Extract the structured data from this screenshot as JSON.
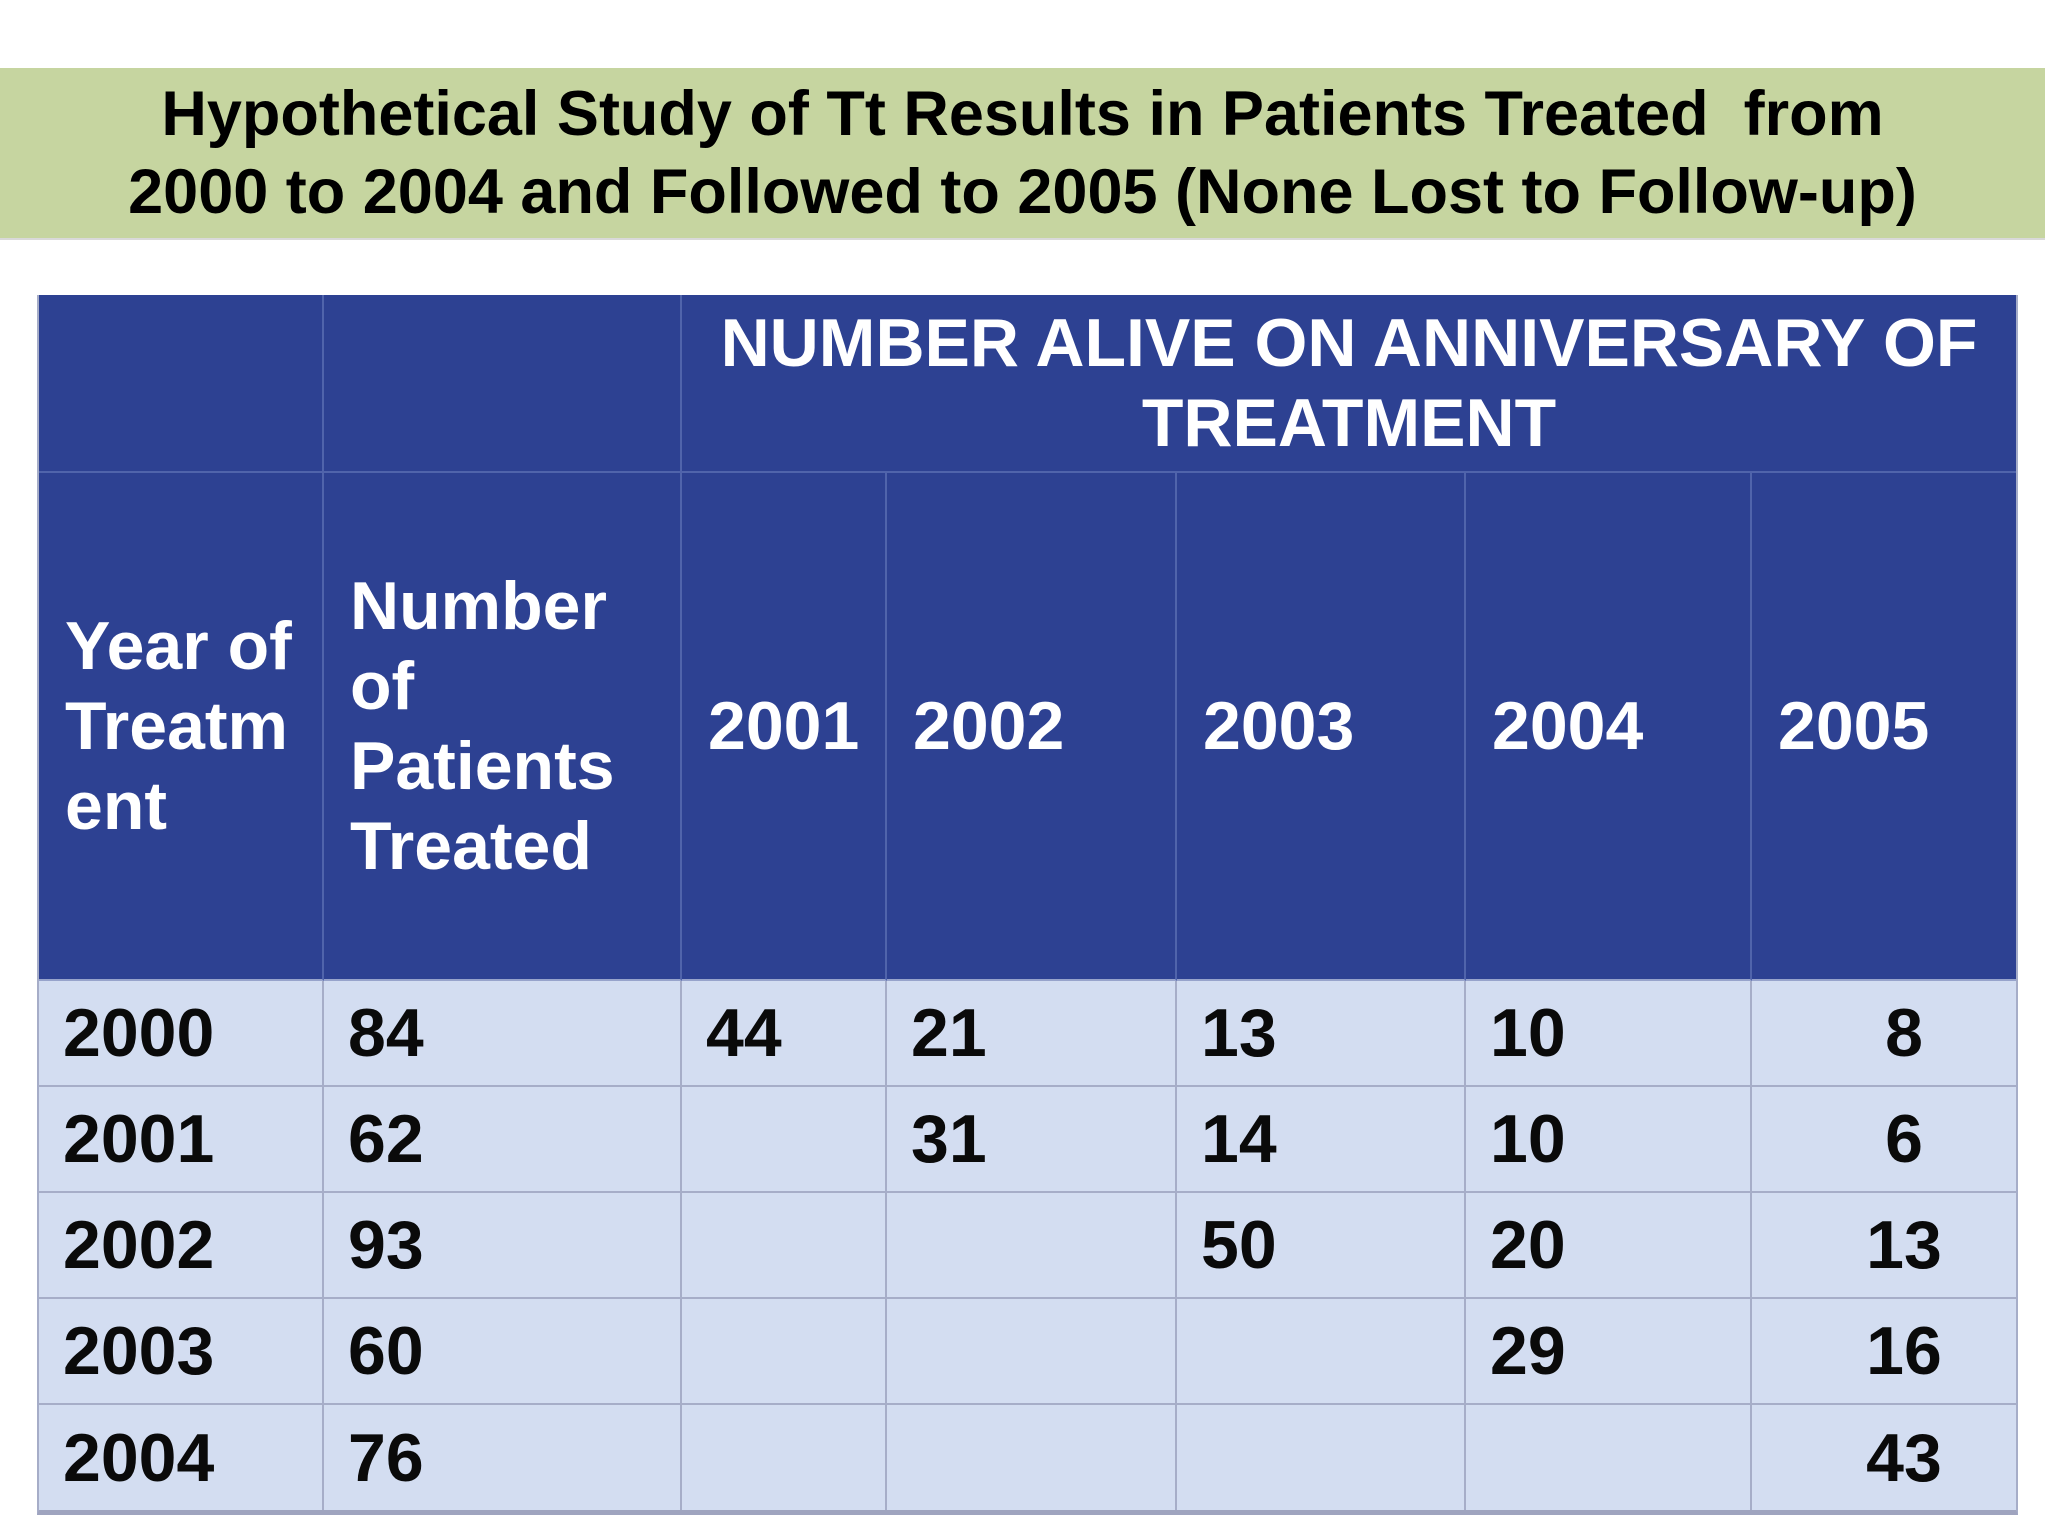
{
  "title": {
    "text": "Hypothetical Study of Tt Results in Patients Treated  from\n2000 to 2004 and Followed to 2005 (None Lost to Follow-up)"
  },
  "table": {
    "merged_header": "NUMBER ALIVE ON ANNIVERSARY OF\nTREATMENT",
    "column_headers": [
      "Year of\nTreatm\nent",
      "Number\nof\nPatients\nTreated",
      "2001",
      "2002",
      "2003",
      "2004",
      "2005"
    ],
    "rows": [
      {
        "cells": [
          "2000",
          "84",
          "44",
          "21",
          "13",
          "10",
          "8"
        ]
      },
      {
        "cells": [
          "2001",
          "62",
          "",
          "31",
          "14",
          "10",
          "6"
        ]
      },
      {
        "cells": [
          "2002",
          "93",
          "",
          "",
          "50",
          "20",
          "13"
        ]
      },
      {
        "cells": [
          "2003",
          "60",
          "",
          "",
          "",
          "29",
          "16"
        ]
      },
      {
        "cells": [
          "2004",
          "76",
          "",
          "",
          "",
          "",
          "43"
        ]
      }
    ]
  },
  "theme": {
    "title-band": "#c6d5a0",
    "header-bg": "#2d4192",
    "header-text": "#ffffff",
    "body-bg": "#d3ddf1",
    "body-text": "#0a0a0a",
    "header-line": "#5064ab",
    "body-line": "#a6adc8",
    "table-edge": "#9fa4bf"
  }
}
